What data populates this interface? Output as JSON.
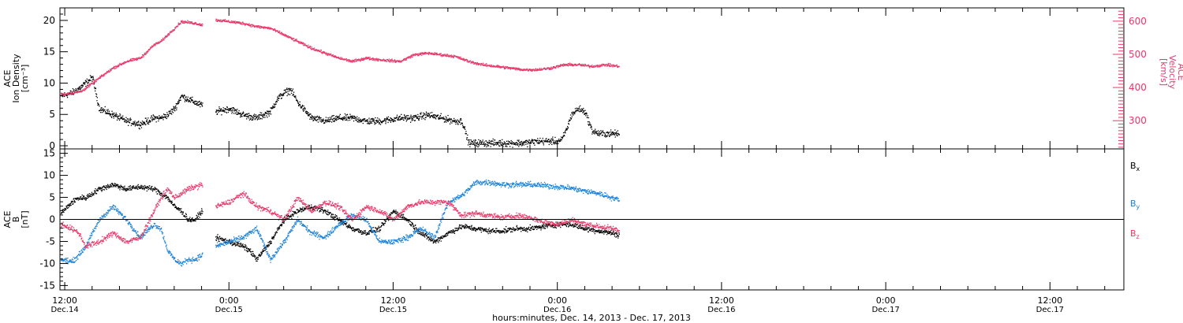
{
  "chart_data": [
    {
      "type": "scatter",
      "panel": "top",
      "xlabel": "hours:minutes, Dec. 14, 2013 - Dec. 17, 2013",
      "x_ticks": [
        {
          "hour": 0,
          "time": "12:00",
          "date": "Dec.14"
        },
        {
          "hour": 12,
          "time": "0:00",
          "date": "Dec.15"
        },
        {
          "hour": 24,
          "time": "12:00",
          "date": "Dec.15"
        },
        {
          "hour": 36,
          "time": "0:00",
          "date": "Dec.16"
        },
        {
          "hour": 48,
          "time": "12:00",
          "date": "Dec.16"
        },
        {
          "hour": 60,
          "time": "0:00",
          "date": "Dec.17"
        },
        {
          "hour": 72,
          "time": "12:00",
          "date": "Dec.17"
        }
      ],
      "xlim_hours": [
        -0.35,
        77.4
      ],
      "left_axis": {
        "label_lines": [
          "ACE",
          "Ion Density"
        ],
        "unit_label": "[cm⁻³]",
        "ylim": [
          -0.5,
          22
        ],
        "ticks": [
          0,
          5,
          10,
          15,
          20
        ]
      },
      "right_axis": {
        "label_lines": [
          "ACE",
          "Velocity"
        ],
        "unit_label": "[km/s]",
        "ylim": [
          215,
          640
        ],
        "ticks": [
          300,
          400,
          500,
          600
        ],
        "color": "#e8386a"
      },
      "series": [
        {
          "axis": "left",
          "color": "#000000",
          "x": [
            -0.3,
            0.5,
            1.2,
            2.0,
            2.5,
            3.5,
            4.5,
            5.5,
            6.5,
            7.0,
            7.5,
            8.0,
            8.5,
            9.5,
            10.0,
            11.0,
            12.0,
            13.0,
            14.0,
            15.0,
            15.5,
            16.0,
            16.5,
            17.0,
            18.0,
            19.0,
            20.0,
            21.0,
            22.0,
            23.0,
            24.5,
            25.5,
            26.5,
            27.5,
            28.5,
            29.0,
            29.5,
            30.5,
            31.5,
            32.5,
            33.5,
            34.5,
            35.5,
            36.0,
            36.3,
            36.7,
            37.0,
            37.5,
            38.0,
            38.5,
            39.0,
            39.5,
            40.0,
            40.5
          ],
          "y": [
            8,
            8.5,
            9.5,
            11,
            6,
            5,
            4,
            3.5,
            4.5,
            4.5,
            5,
            6,
            8,
            7,
            6.5,
            5.5,
            6,
            5,
            4.5,
            5.5,
            7.5,
            8.5,
            9,
            7,
            4.5,
            4,
            4.5,
            4.5,
            4,
            4,
            4.5,
            4.5,
            5,
            4.5,
            4,
            4,
            0.5,
            0.5,
            0.5,
            0.5,
            0.5,
            0.8,
            0.8,
            0.8,
            1,
            3,
            5,
            6,
            5.5,
            2.5,
            2,
            2,
            2,
            2
          ],
          "gaps_after_x": [
            10.0,
            29.0,
            40.5
          ]
        },
        {
          "axis": "right",
          "color": "#e8386a",
          "x": [
            -0.3,
            0.5,
            1.2,
            2.5,
            3.5,
            4.5,
            5.5,
            6.0,
            6.5,
            7.0,
            7.5,
            8.0,
            8.5,
            9.5,
            10.0,
            11.0,
            12.0,
            13.0,
            14.0,
            15.0,
            16.0,
            17.0,
            18.0,
            19.0,
            20.0,
            21.0,
            22.0,
            23.0,
            24.5,
            25.5,
            26.5,
            27.5,
            28.5,
            29.5,
            30.5,
            31.5,
            32.5,
            33.5,
            34.5,
            35.5,
            36.5,
            37.5,
            38.5,
            39.5,
            40.5
          ],
          "y": [
            380,
            385,
            390,
            430,
            460,
            480,
            490,
            510,
            530,
            540,
            560,
            580,
            600,
            595,
            590,
            605,
            600,
            595,
            585,
            580,
            560,
            540,
            520,
            505,
            490,
            480,
            490,
            485,
            480,
            500,
            505,
            500,
            495,
            480,
            470,
            465,
            460,
            455,
            455,
            460,
            470,
            470,
            465,
            470,
            465
          ],
          "gaps_after_x": [
            10.0,
            40.5
          ]
        }
      ]
    },
    {
      "type": "scatter",
      "panel": "bottom",
      "left_axis": {
        "label_lines": [
          "ACE",
          "B"
        ],
        "unit_label": "[nT]",
        "ylim": [
          -16,
          16
        ],
        "ticks": [
          -15,
          -10,
          -5,
          0,
          5,
          10,
          15
        ],
        "zero_line": true
      },
      "legend_placement": "right",
      "series": [
        {
          "name": "B",
          "subscript": "x",
          "color": "#000000",
          "x": [
            -0.3,
            0.5,
            1.0,
            1.5,
            2.5,
            3.5,
            4.5,
            5.5,
            6.5,
            7.0,
            7.5,
            8.0,
            8.5,
            9.0,
            9.5,
            10.0,
            11.0,
            12.0,
            13.0,
            13.5,
            14.0,
            15.0,
            16.0,
            17.0,
            18.0,
            19.0,
            20.0,
            21.0,
            22.0,
            23.0,
            24.0,
            25.0,
            26.0,
            27.0,
            28.0,
            29.0,
            30.0,
            31.0,
            32.0,
            33.0,
            34.0,
            35.0,
            36.0,
            37.0,
            38.0,
            39.0,
            40.0,
            40.5
          ],
          "y": [
            1.5,
            4,
            5,
            5,
            7,
            8,
            7,
            7.5,
            7,
            6,
            5,
            3,
            2,
            0,
            0,
            2,
            -4,
            -5,
            -6,
            -7,
            -9,
            -5,
            0,
            2,
            3,
            2,
            0,
            -2,
            -3,
            -2,
            2,
            0,
            -3,
            -5,
            -3,
            -1.5,
            -2,
            -2.5,
            -2.5,
            -2,
            -2,
            -1.5,
            -1,
            -1,
            -2,
            -2.5,
            -3,
            -3.5
          ],
          "gaps_after_x": [
            10.0,
            40.5
          ]
        },
        {
          "name": "B",
          "subscript": "y",
          "color": "#1a82d9",
          "x": [
            -0.3,
            0.5,
            1.0,
            1.5,
            2.5,
            3.5,
            4.5,
            5.5,
            6.5,
            7.0,
            7.5,
            8.0,
            8.5,
            9.0,
            9.5,
            10.0,
            11.0,
            12.0,
            13.0,
            14.0,
            15.0,
            16.0,
            17.0,
            18.0,
            19.0,
            20.0,
            21.0,
            22.0,
            23.0,
            24.0,
            25.0,
            26.0,
            27.0,
            28.0,
            29.0,
            30.0,
            31.0,
            32.0,
            33.0,
            34.0,
            35.0,
            36.0,
            37.0,
            38.0,
            39.0,
            40.0,
            40.5
          ],
          "y": [
            -9,
            -9.5,
            -8,
            -6,
            0,
            3,
            0,
            -4,
            -1,
            -2,
            -7,
            -9,
            -10,
            -9,
            -9,
            -8,
            -6,
            -5,
            -4,
            -2,
            -9,
            -5,
            0,
            -3,
            -4,
            -1,
            1,
            0,
            -5,
            -5,
            -4,
            -2,
            -4,
            4,
            5.5,
            8.5,
            8.5,
            8,
            8,
            8,
            7.8,
            7.5,
            7.2,
            6.5,
            6,
            5,
            4.5
          ],
          "gaps_after_x": [
            10.0,
            40.5
          ]
        },
        {
          "name": "B",
          "subscript": "z",
          "color": "#e8386a",
          "x": [
            -0.3,
            0.5,
            1.0,
            1.5,
            2.5,
            3.5,
            4.5,
            5.5,
            6.5,
            7.0,
            7.5,
            8.0,
            8.5,
            9.0,
            9.5,
            10.0,
            11.0,
            12.0,
            13.0,
            14.0,
            15.0,
            16.0,
            17.0,
            18.0,
            19.0,
            20.0,
            21.0,
            22.0,
            23.0,
            24.0,
            25.0,
            26.0,
            27.0,
            28.0,
            29.0,
            30.0,
            31.0,
            32.0,
            33.0,
            34.0,
            35.0,
            36.0,
            37.0,
            38.0,
            39.0,
            40.0,
            40.5
          ],
          "y": [
            -1,
            -2,
            -3,
            -6,
            -5,
            -3,
            -5,
            -4,
            2,
            5,
            7,
            5,
            6,
            7,
            7.5,
            8,
            3,
            4,
            6,
            3,
            2,
            0,
            5,
            2,
            4,
            3,
            0,
            3,
            2,
            0,
            3,
            4,
            4,
            4,
            1,
            1.5,
            1,
            0.5,
            1,
            0.5,
            -0.5,
            -1,
            0,
            -1,
            -1.5,
            -2,
            -2.5
          ],
          "gaps_after_x": [
            10.0,
            40.5
          ]
        }
      ]
    }
  ]
}
